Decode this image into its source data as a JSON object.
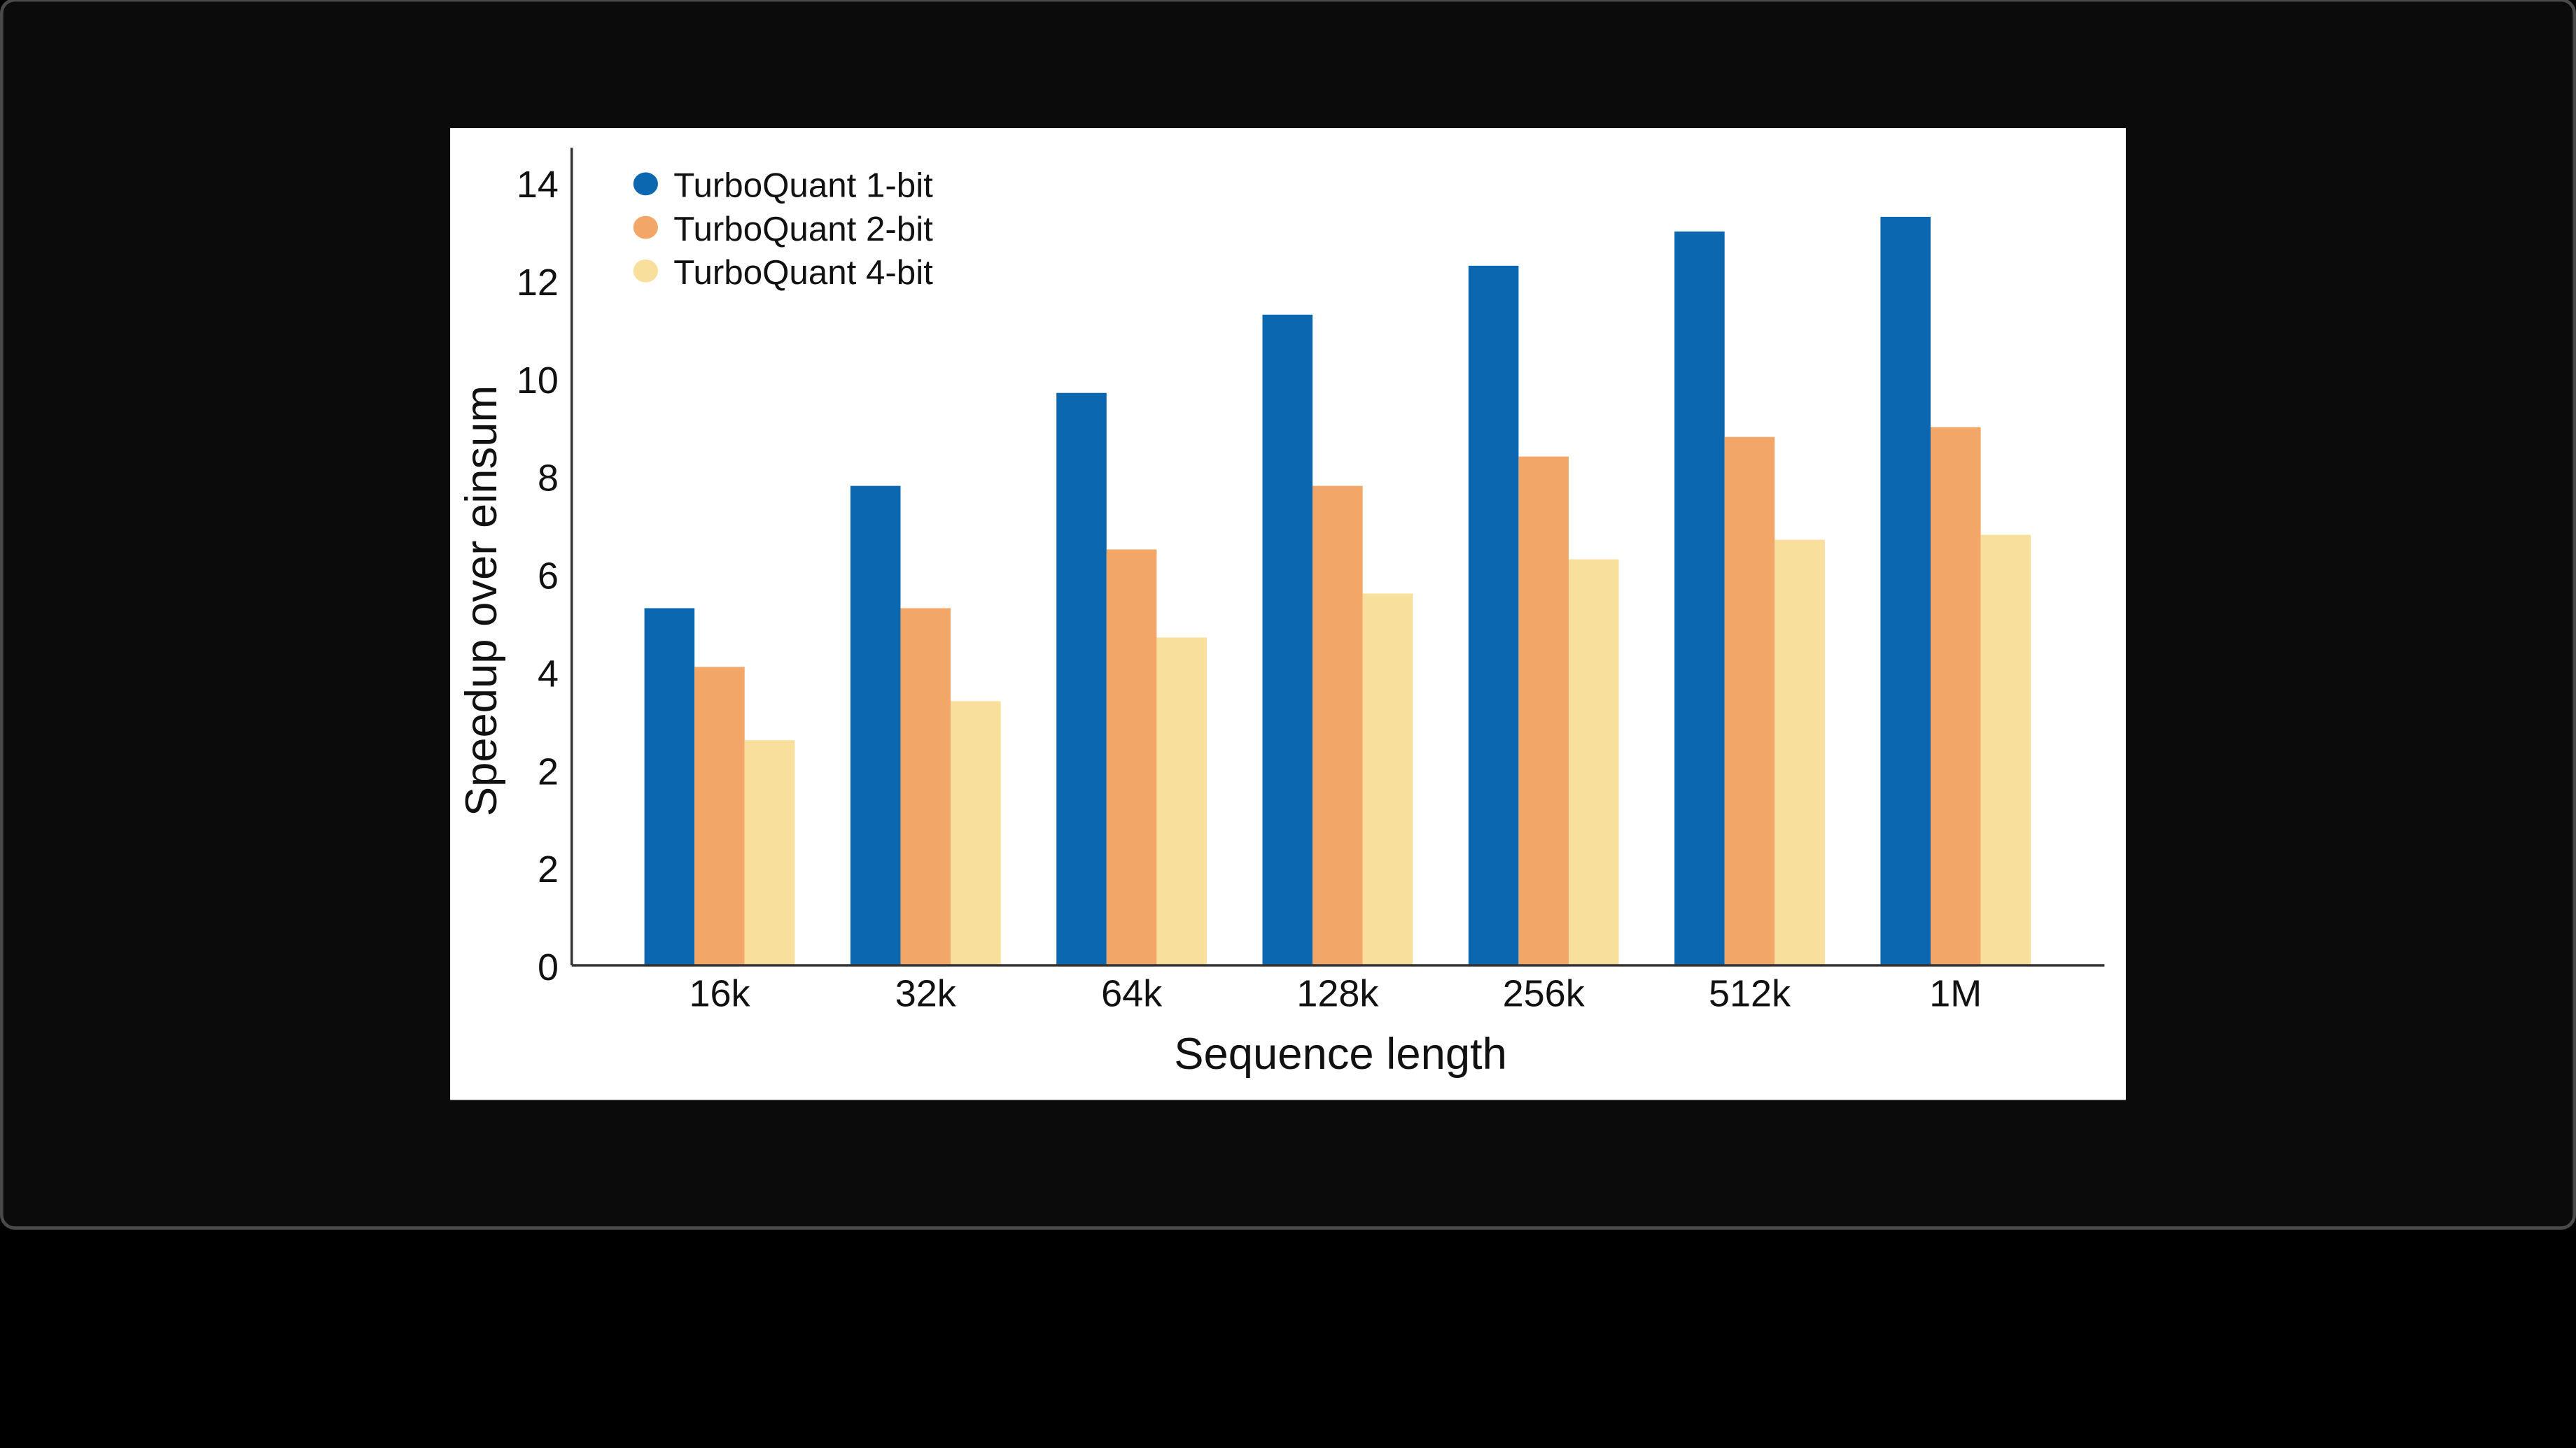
{
  "chart_data": {
    "type": "bar",
    "title": "",
    "xlabel": "Sequence length",
    "ylabel": "Speedup over einsum",
    "categories": [
      "16k",
      "32k",
      "64k",
      "128k",
      "256k",
      "512k",
      "1M"
    ],
    "y_tick_labels": [
      "0",
      "2",
      "2",
      "4",
      "6",
      "8",
      "10",
      "12",
      "14"
    ],
    "ylim": [
      0,
      14
    ],
    "grid": false,
    "legend_position": "top-left",
    "series": [
      {
        "name": "TurboQuant 1-bit",
        "color": "#0a67b0",
        "values": [
          5.3,
          7.8,
          9.7,
          11.3,
          12.3,
          13.0,
          13.3
        ]
      },
      {
        "name": "TurboQuant 2-bit",
        "color": "#f2a667",
        "values": [
          4.1,
          5.3,
          6.5,
          7.8,
          8.4,
          8.8,
          9.0
        ]
      },
      {
        "name": "TurboQuant 4-bit",
        "color": "#f9df9c",
        "values": [
          2.6,
          3.4,
          4.7,
          5.6,
          6.3,
          6.7,
          6.8
        ]
      }
    ]
  }
}
